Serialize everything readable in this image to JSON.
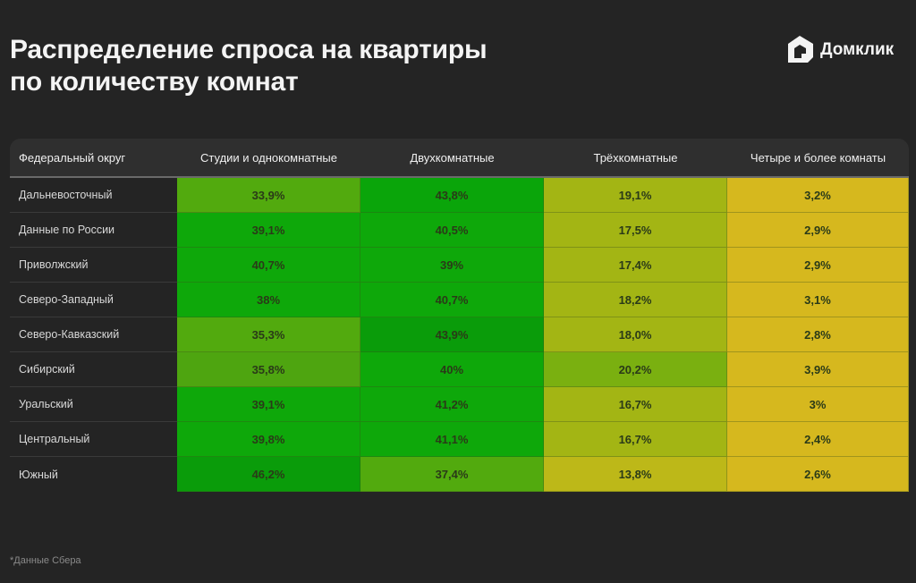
{
  "header": {
    "title_line1": "Распределение спроса на квартиры",
    "title_line2": "по количеству комнат",
    "logo_text": "Домклик",
    "logo_icon": "home-icon"
  },
  "colors": {
    "background": "#242424",
    "header_row": "#2f2f2f",
    "scale": {
      "yellow": "#d6b81e",
      "yellow_green": "#a3b514",
      "olive_yellow": "#bdb818",
      "light_green": "#52aa0e",
      "green": "#0ea80a",
      "dark_green": "#0a9c0a"
    }
  },
  "table": {
    "columns": [
      "Федеральный округ",
      "Студии и однокомнатные",
      "Двухкомнатные",
      "Трёхкомнатные",
      "Четыре и более комнаты"
    ],
    "rows": [
      {
        "region": "Дальневосточный",
        "values": [
          "33,9%",
          "43,8%",
          "19,1%",
          "3,2%"
        ],
        "colors": [
          "#52aa0e",
          "#0aa50a",
          "#a3b514",
          "#d6b81e"
        ]
      },
      {
        "region": "Данные по России",
        "values": [
          "39,1%",
          "40,5%",
          "17,5%",
          "2,9%"
        ],
        "colors": [
          "#0ea80a",
          "#0ea80a",
          "#a3b514",
          "#d6b81e"
        ]
      },
      {
        "region": "Приволжский",
        "values": [
          "40,7%",
          "39%",
          "17,4%",
          "2,9%"
        ],
        "colors": [
          "#0ea80a",
          "#0ea80a",
          "#a3b514",
          "#d6b81e"
        ]
      },
      {
        "region": "Северо-Западный",
        "values": [
          "38%",
          "40,7%",
          "18,2%",
          "3,1%"
        ],
        "colors": [
          "#0ea80a",
          "#0ea80a",
          "#a3b514",
          "#d6b81e"
        ]
      },
      {
        "region": "Северо-Кавказский",
        "values": [
          "35,3%",
          "43,9%",
          "18,0%",
          "2,8%"
        ],
        "colors": [
          "#52aa0e",
          "#0a9c0a",
          "#a3b514",
          "#d6b81e"
        ]
      },
      {
        "region": "Сибирский",
        "values": [
          "35,8%",
          "40%",
          "20,2%",
          "3,9%"
        ],
        "colors": [
          "#4ea510",
          "#0ea80a",
          "#7ab010",
          "#d6b81e"
        ]
      },
      {
        "region": "Уральский",
        "values": [
          "39,1%",
          "41,2%",
          "16,7%",
          "3%"
        ],
        "colors": [
          "#0ea80a",
          "#0ea80a",
          "#a3b514",
          "#d6b81e"
        ]
      },
      {
        "region": "Центральный",
        "values": [
          "39,8%",
          "41,1%",
          "16,7%",
          "2,4%"
        ],
        "colors": [
          "#0ea80a",
          "#0ea80a",
          "#a3b514",
          "#d6b81e"
        ]
      },
      {
        "region": "Южный",
        "values": [
          "46,2%",
          "37,4%",
          "13,8%",
          "2,6%"
        ],
        "colors": [
          "#0a9c0a",
          "#52aa0e",
          "#bdb818",
          "#d6b81e"
        ]
      }
    ]
  },
  "footnote": "*Данные Сбера",
  "chart_data": {
    "type": "heatmap",
    "title": "Распределение спроса на квартиры по количеству комнат",
    "row_header": "Федеральный округ",
    "categories": [
      "Студии и однокомнатные",
      "Двухкомнатные",
      "Трёхкомнатные",
      "Четыре и более комнаты"
    ],
    "rows": [
      "Дальневосточный",
      "Данные по России",
      "Приволжский",
      "Северо-Западный",
      "Северо-Кавказский",
      "Сибирский",
      "Уральский",
      "Центральный",
      "Южный"
    ],
    "values": [
      [
        33.9,
        43.8,
        19.1,
        3.2
      ],
      [
        39.1,
        40.5,
        17.5,
        2.9
      ],
      [
        40.7,
        39.0,
        17.4,
        2.9
      ],
      [
        38.0,
        40.7,
        18.2,
        3.1
      ],
      [
        35.3,
        43.9,
        18.0,
        2.8
      ],
      [
        35.8,
        40.0,
        20.2,
        3.9
      ],
      [
        39.1,
        41.2,
        16.7,
        3.0
      ],
      [
        39.8,
        41.1,
        16.7,
        2.4
      ],
      [
        46.2,
        37.4,
        13.8,
        2.6
      ]
    ],
    "unit": "%",
    "note": "*Данные Сбера"
  }
}
